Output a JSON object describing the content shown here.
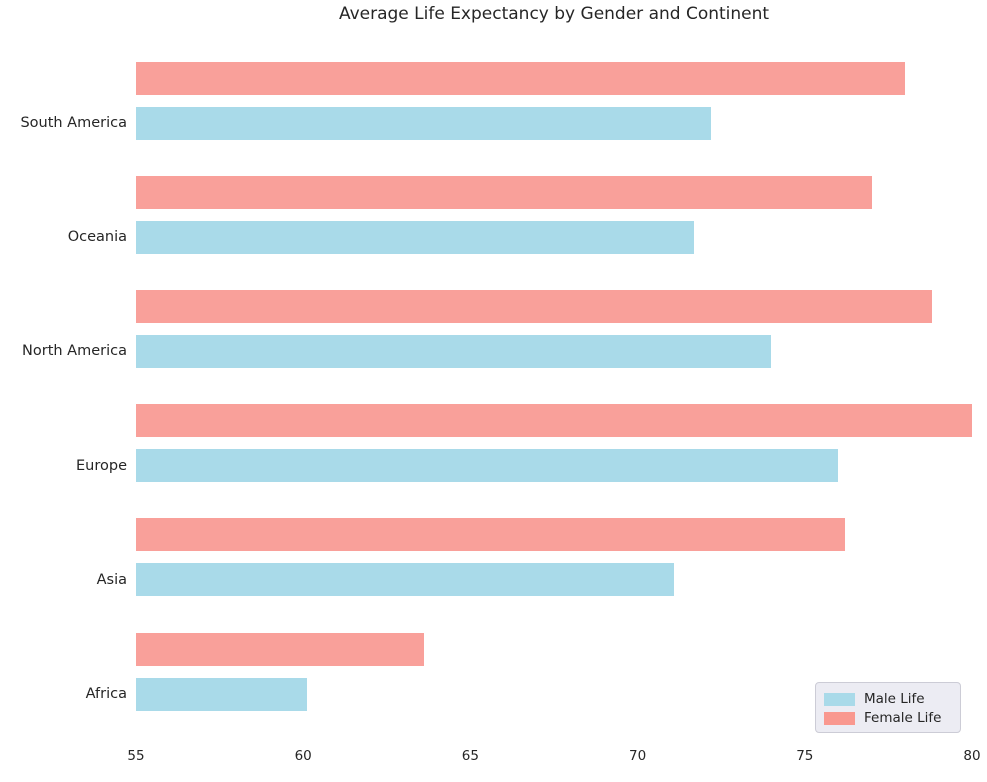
{
  "title": "Average Life Expectancy by Gender and Continent",
  "legend": {
    "position": "lower right",
    "items": [
      {
        "label": "Male Life",
        "color": "#A9DAE9"
      },
      {
        "label": "Female Life",
        "color": "#F9988F"
      }
    ]
  },
  "colors": {
    "male_bar": "#A9DAE9",
    "female_bar": "#F9A09A",
    "text": "#262626",
    "background": "#FFFFFF",
    "legend_background": "#ECECF3",
    "legend_border": "#CCCCD6"
  },
  "chart_data": {
    "type": "bar",
    "orientation": "horizontal",
    "title": "Average Life Expectancy by Gender and Continent",
    "xlabel": "",
    "ylabel": "",
    "categories": [
      "South America",
      "Oceania",
      "North America",
      "Europe",
      "Asia",
      "Africa"
    ],
    "series": [
      {
        "name": "Male Life",
        "color": "#A9DAE9",
        "values": [
          72.2,
          71.7,
          74.0,
          76.0,
          71.1,
          60.1
        ]
      },
      {
        "name": "Female Life",
        "color": "#F9A09A",
        "values": [
          78.0,
          77.0,
          78.8,
          80.0,
          76.2,
          63.6
        ]
      }
    ],
    "xlim": [
      55,
      80
    ],
    "xticks": [
      55,
      60,
      65,
      70,
      75,
      80
    ],
    "grid": false,
    "bar_order_in_group": [
      "Female Life",
      "Male Life"
    ],
    "legend_position": "lower right"
  }
}
